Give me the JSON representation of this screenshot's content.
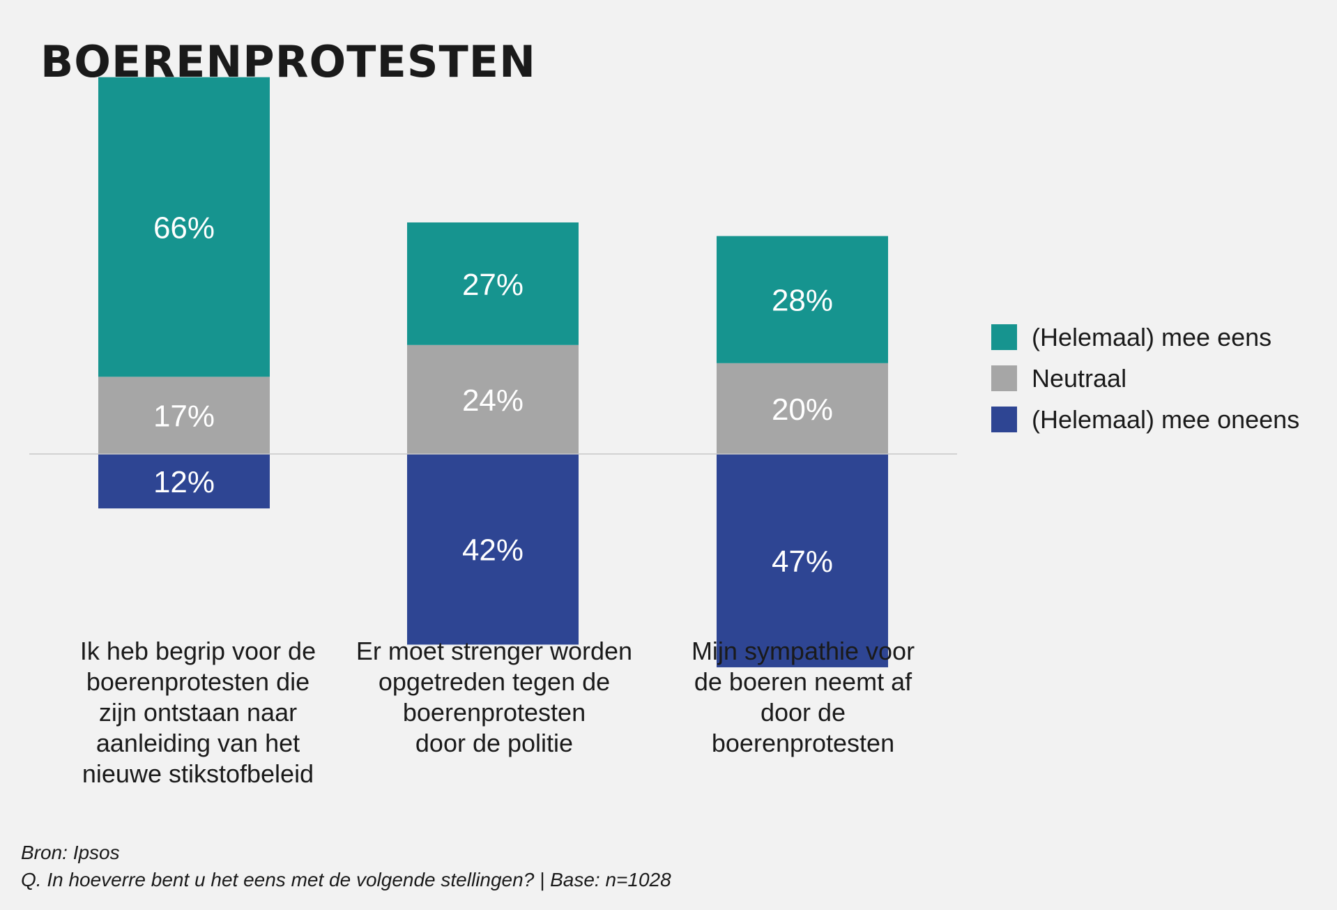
{
  "chart_data": {
    "type": "bar",
    "title": "BOERENPROTESTEN",
    "categories": [
      "Ik heb begrip voor de\nboerenprotesten die\nzijn ontstaan naar\naanleiding van het\nnieuwe stikstofbeleid",
      "Er moet strenger worden\nopgetreden tegen de\nboerenprotesten\ndoor de politie",
      "Mijn sympathie voor\nde boeren neemt af\ndoor de\nboerenprotesten"
    ],
    "series": [
      {
        "name": "(Helemaal) mee eens",
        "values": [
          66,
          27,
          28
        ],
        "labels": [
          "66%",
          "27%",
          "28%"
        ],
        "color": "#16948f",
        "direction": "up"
      },
      {
        "name": "Neutraal",
        "values": [
          17,
          24,
          20
        ],
        "labels": [
          "17%",
          "24%",
          "20%"
        ],
        "color": "#a6a6a6",
        "direction": "up"
      },
      {
        "name": "(Helemaal) mee oneens",
        "values": [
          12,
          42,
          47
        ],
        "labels": [
          "12%",
          "42%",
          "47%"
        ],
        "color": "#2e4593",
        "direction": "down"
      }
    ],
    "unit": "%",
    "baseline": 0,
    "legend_position": "right"
  },
  "footer": {
    "source": "Bron: Ipsos",
    "question": "Q. In hoeverre bent u het eens met de volgende stellingen? | Base: n=1028"
  }
}
